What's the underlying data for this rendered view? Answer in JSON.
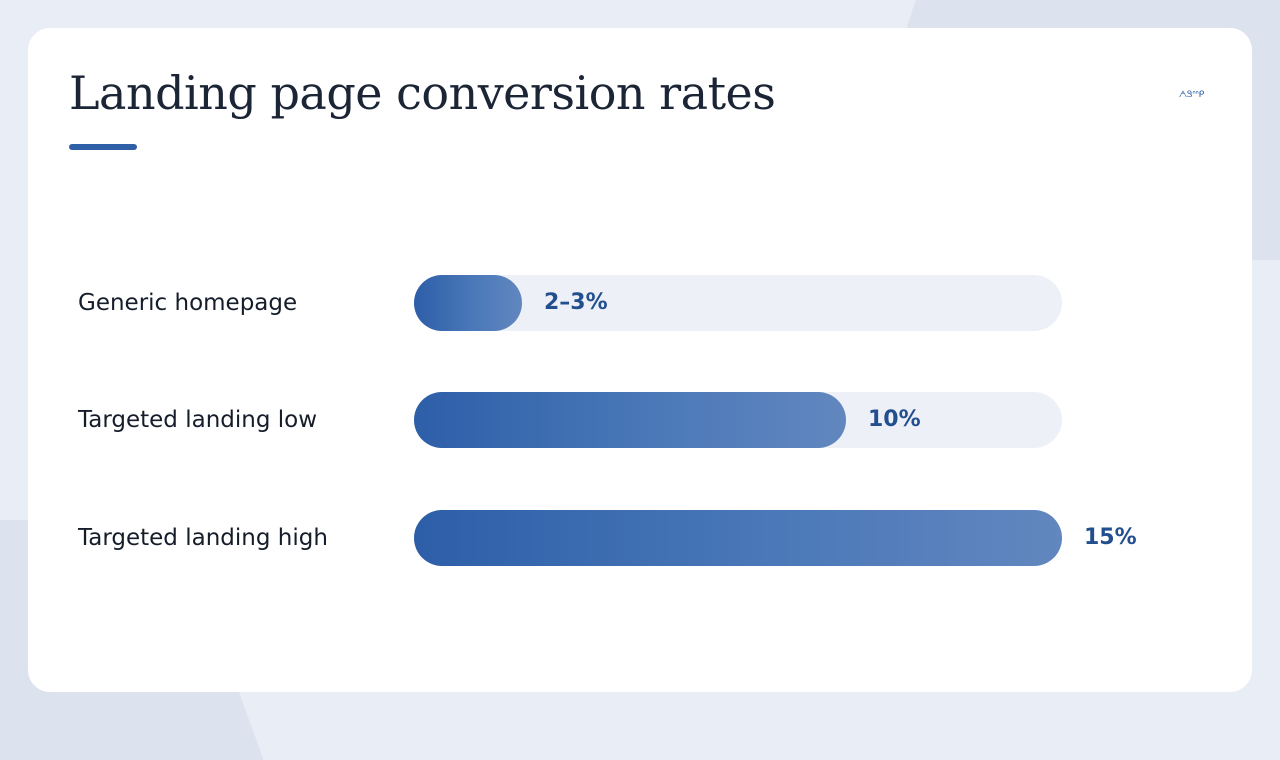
{
  "slide": {
    "title": "Landing page conversion rates",
    "logo_text": "ᗅᏕᐢᐢᑭ",
    "accent_color": "#2f5fa6",
    "track_color": "#edf1f7"
  },
  "chart_data": {
    "type": "bar",
    "orientation": "horizontal",
    "categories": [
      "Generic homepage",
      "Targeted landing low",
      "Targeted landing high"
    ],
    "values": [
      2.5,
      10,
      15
    ],
    "value_labels": [
      "2–3%",
      "10%",
      "15%"
    ],
    "xlim": [
      0,
      15
    ],
    "grid": false,
    "legend": "none"
  }
}
